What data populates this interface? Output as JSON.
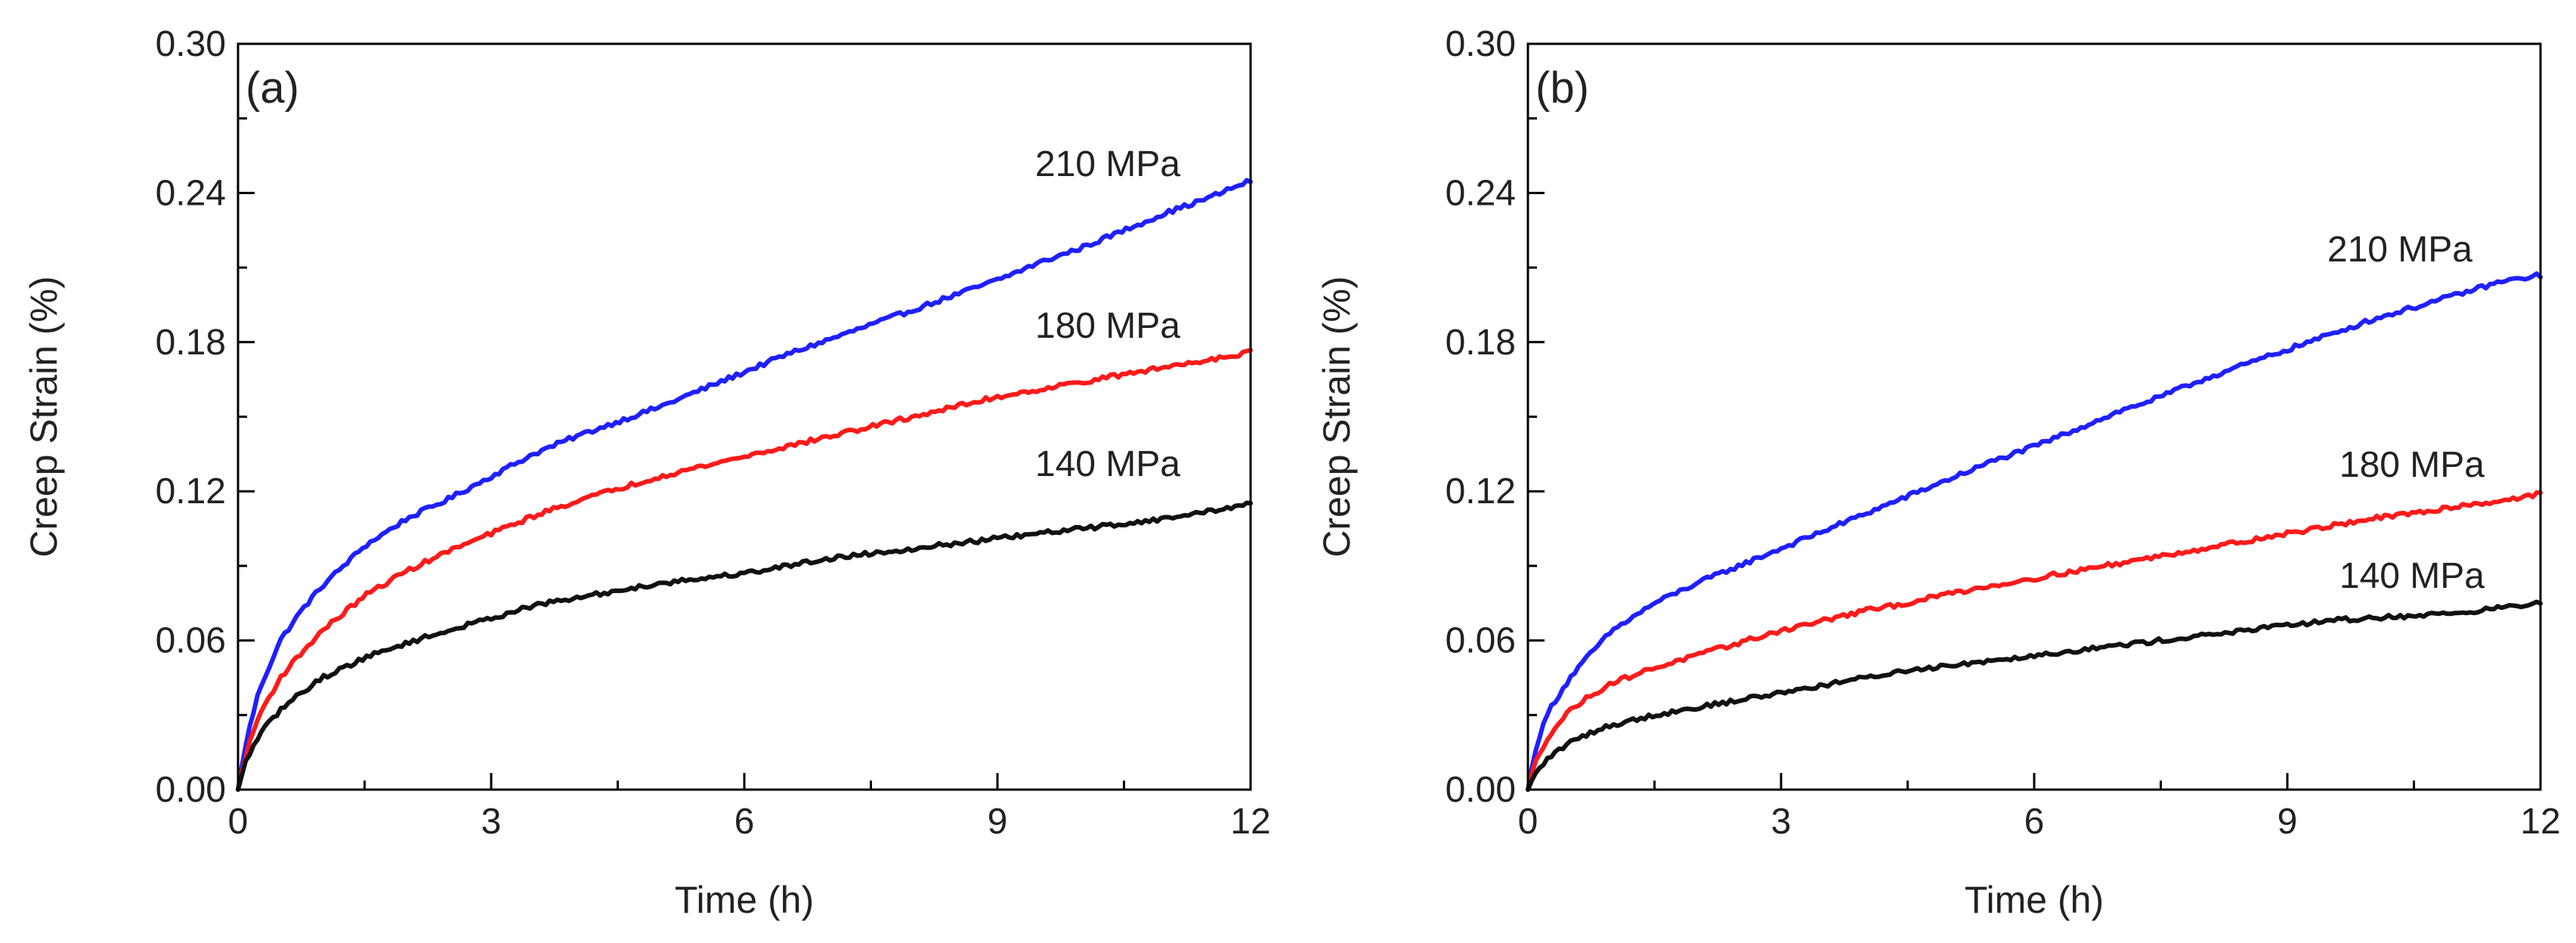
{
  "chart_data": [
    {
      "type": "line",
      "panel_label": "(a)",
      "xlabel": "Time (h)",
      "ylabel": "Creep Strain (%)",
      "xlim": [
        0,
        12
      ],
      "ylim": [
        0,
        0.3
      ],
      "xticks": [
        "0",
        "3",
        "6",
        "9",
        "12"
      ],
      "yticks": [
        "0.00",
        "0.06",
        "0.12",
        "0.18",
        "0.24",
        "0.30"
      ],
      "grid": false,
      "series": [
        {
          "name": "210 MPa",
          "color": "#1f1fff",
          "x": [
            0,
            0.1,
            0.25,
            0.5,
            0.75,
            1,
            1.5,
            2,
            2.5,
            3,
            3.5,
            4,
            4.5,
            5,
            5.5,
            6,
            6.5,
            7,
            7.5,
            8,
            8.5,
            9,
            9.5,
            10,
            10.5,
            11,
            11.5,
            12
          ],
          "y": [
            0,
            0.02,
            0.04,
            0.06,
            0.072,
            0.082,
            0.098,
            0.109,
            0.117,
            0.126,
            0.135,
            0.142,
            0.148,
            0.154,
            0.161,
            0.168,
            0.175,
            0.181,
            0.187,
            0.193,
            0.199,
            0.205,
            0.212,
            0.218,
            0.225,
            0.232,
            0.238,
            0.245
          ]
        },
        {
          "name": "180 MPa",
          "color": "#ff1a1a",
          "x": [
            0,
            0.1,
            0.25,
            0.5,
            0.75,
            1,
            1.5,
            2,
            2.5,
            3,
            3.5,
            4,
            4.5,
            5,
            5.5,
            6,
            6.5,
            7,
            7.5,
            8,
            8.5,
            9,
            9.5,
            10,
            10.5,
            11,
            11.5,
            12
          ],
          "y": [
            0,
            0.015,
            0.03,
            0.045,
            0.055,
            0.064,
            0.078,
            0.088,
            0.096,
            0.103,
            0.11,
            0.116,
            0.121,
            0.126,
            0.13,
            0.134,
            0.138,
            0.142,
            0.146,
            0.15,
            0.154,
            0.158,
            0.161,
            0.164,
            0.167,
            0.17,
            0.173,
            0.176
          ]
        },
        {
          "name": "140 MPa",
          "color": "#111111",
          "x": [
            0,
            0.1,
            0.25,
            0.5,
            0.75,
            1,
            1.5,
            2,
            2.5,
            3,
            3.5,
            4,
            4.5,
            5,
            5.5,
            6,
            6.5,
            7,
            7.5,
            8,
            8.5,
            9,
            9.5,
            10,
            10.5,
            11,
            11.5,
            12
          ],
          "y": [
            0,
            0.012,
            0.022,
            0.032,
            0.039,
            0.045,
            0.053,
            0.059,
            0.064,
            0.069,
            0.074,
            0.077,
            0.08,
            0.083,
            0.085,
            0.087,
            0.09,
            0.093,
            0.095,
            0.097,
            0.099,
            0.101,
            0.103,
            0.105,
            0.107,
            0.109,
            0.112,
            0.115
          ]
        }
      ]
    },
    {
      "type": "line",
      "panel_label": "(b)",
      "xlabel": "Time (h)",
      "ylabel": "Creep Strain (%)",
      "xlim": [
        0,
        12
      ],
      "ylim": [
        0,
        0.3
      ],
      "xticks": [
        "0",
        "3",
        "6",
        "9",
        "12"
      ],
      "yticks": [
        "0.00",
        "0.06",
        "0.12",
        "0.18",
        "0.24",
        "0.30"
      ],
      "grid": false,
      "series": [
        {
          "name": "210 MPa",
          "color": "#1f1fff",
          "x": [
            0,
            0.1,
            0.25,
            0.5,
            0.75,
            1,
            1.5,
            2,
            2.5,
            3,
            3.5,
            4,
            4.5,
            5,
            5.5,
            6,
            6.5,
            7,
            7.5,
            8,
            8.5,
            9,
            9.5,
            10,
            10.5,
            11,
            11.5,
            12
          ],
          "y": [
            0,
            0.018,
            0.032,
            0.045,
            0.055,
            0.064,
            0.075,
            0.083,
            0.09,
            0.097,
            0.104,
            0.111,
            0.118,
            0.125,
            0.132,
            0.138,
            0.145,
            0.152,
            0.158,
            0.165,
            0.171,
            0.177,
            0.183,
            0.189,
            0.194,
            0.199,
            0.204,
            0.207
          ]
        },
        {
          "name": "180 MPa",
          "color": "#ff1a1a",
          "x": [
            0,
            0.1,
            0.25,
            0.5,
            0.75,
            1,
            1.5,
            2,
            2.5,
            3,
            3.5,
            4,
            4.5,
            5,
            5.5,
            6,
            6.5,
            7,
            7.5,
            8,
            8.5,
            9,
            9.5,
            10,
            10.5,
            11,
            11.5,
            12
          ],
          "y": [
            0,
            0.012,
            0.022,
            0.032,
            0.038,
            0.043,
            0.049,
            0.054,
            0.059,
            0.064,
            0.068,
            0.072,
            0.075,
            0.079,
            0.082,
            0.085,
            0.088,
            0.091,
            0.094,
            0.097,
            0.1,
            0.103,
            0.106,
            0.109,
            0.111,
            0.114,
            0.116,
            0.119
          ]
        },
        {
          "name": "140 MPa",
          "color": "#111111",
          "x": [
            0,
            0.1,
            0.25,
            0.5,
            0.75,
            1,
            1.5,
            2,
            2.5,
            3,
            3.5,
            4,
            4.5,
            5,
            5.5,
            6,
            6.5,
            7,
            7.5,
            8,
            8.5,
            9,
            9.5,
            10,
            10.5,
            11,
            11.5,
            12
          ],
          "y": [
            0,
            0.007,
            0.013,
            0.019,
            0.023,
            0.026,
            0.03,
            0.033,
            0.036,
            0.039,
            0.042,
            0.045,
            0.048,
            0.05,
            0.052,
            0.054,
            0.056,
            0.058,
            0.06,
            0.062,
            0.064,
            0.066,
            0.068,
            0.069,
            0.07,
            0.071,
            0.073,
            0.075
          ]
        }
      ]
    }
  ]
}
